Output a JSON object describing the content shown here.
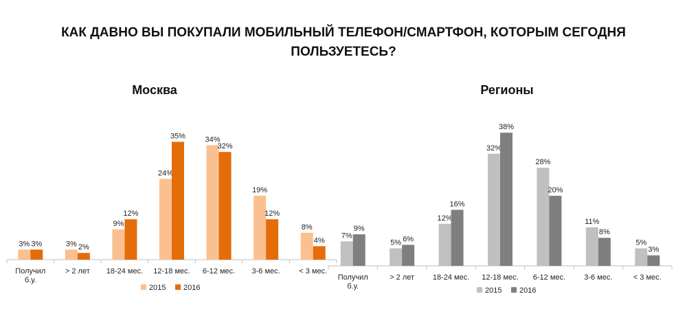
{
  "main_title": "КАК ДАВНО ВЫ ПОКУПАЛИ МОБИЛЬНЫЙ ТЕЛЕФОН/СМАРТФОН, КОТОРЫМ СЕГОДНЯ ПОЛЬЗУЕТЕСЬ?",
  "chart_data": [
    {
      "type": "bar",
      "title": "Москва",
      "categories": [
        [
          "Получил",
          "б.у."
        ],
        [
          "> 2 лет"
        ],
        [
          "18-24 мес."
        ],
        [
          "12-18 мес."
        ],
        [
          "6-12 мес."
        ],
        [
          "3-6 мес."
        ],
        [
          "< 3 мес."
        ]
      ],
      "series": [
        {
          "name": "2015",
          "values": [
            3,
            3,
            9,
            24,
            34,
            19,
            8
          ],
          "labels": [
            "3%",
            "3%",
            "9%",
            "24%",
            "34%",
            "19%",
            "8%"
          ],
          "color": "#FAC090"
        },
        {
          "name": "2016",
          "values": [
            3,
            2,
            12,
            35,
            32,
            12,
            4
          ],
          "labels": [
            "3%",
            "2%",
            "12%",
            "35%",
            "32%",
            "12%",
            "4%"
          ],
          "color": "#E46C0A"
        }
      ],
      "legend": "bottom",
      "grid": false
    },
    {
      "type": "bar",
      "title": "Регионы",
      "categories": [
        [
          "Получил",
          "б.у."
        ],
        [
          "> 2 лет"
        ],
        [
          "18-24 мес."
        ],
        [
          "12-18 мес."
        ],
        [
          "6-12 мес."
        ],
        [
          "3-6 мес."
        ],
        [
          "< 3 мес."
        ]
      ],
      "series": [
        {
          "name": "2015",
          "values": [
            7,
            5,
            12,
            32,
            28,
            11,
            5
          ],
          "labels": [
            "7%",
            "5%",
            "12%",
            "32%",
            "28%",
            "11%",
            "5%"
          ],
          "color": "#C0C0C0"
        },
        {
          "name": "2016",
          "values": [
            9,
            6,
            16,
            38,
            20,
            8,
            3
          ],
          "labels": [
            "9%",
            "6%",
            "16%",
            "38%",
            "20%",
            "8%",
            "3%"
          ],
          "color": "#7F7F7F"
        }
      ],
      "legend": "bottom",
      "grid": false
    }
  ]
}
